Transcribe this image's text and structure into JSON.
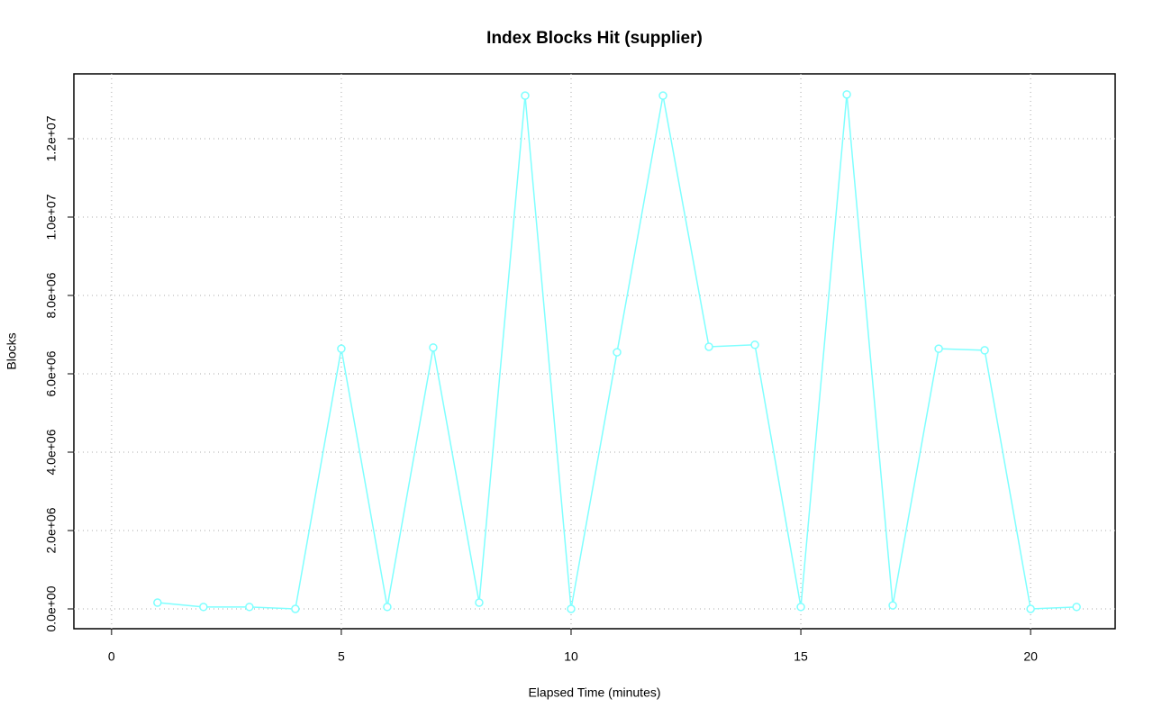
{
  "chart_data": {
    "type": "line",
    "title": "Index Blocks Hit (supplier)",
    "x_label": "Elapsed Time (minutes)",
    "y_label": "Blocks",
    "x": [
      1,
      2,
      3,
      4,
      5,
      6,
      7,
      8,
      9,
      10,
      11,
      12,
      13,
      14,
      15,
      16,
      17,
      18,
      19,
      20,
      21
    ],
    "values": [
      160000,
      50000,
      50000,
      0,
      6640000,
      50000,
      6670000,
      160000,
      13100000,
      0,
      6550000,
      13100000,
      6690000,
      6740000,
      50000,
      13130000,
      90000,
      6640000,
      6600000,
      0,
      50000
    ],
    "color": "#7fffff",
    "xlim": [
      -0.82,
      21.84
    ],
    "xticks": [
      0,
      5,
      10,
      15,
      20
    ],
    "ylim": [
      -506000,
      13655000
    ],
    "yticks": [
      {
        "value": 0,
        "label": "0.0e+00"
      },
      {
        "value": 2000000,
        "label": "2.0e+06"
      },
      {
        "value": 4000000,
        "label": "4.0e+06"
      },
      {
        "value": 6000000,
        "label": "6.0e+06"
      },
      {
        "value": 8000000,
        "label": "8.0e+06"
      },
      {
        "value": 10000000,
        "label": "1.0e+07"
      },
      {
        "value": 12000000,
        "label": "1.2e+07"
      }
    ],
    "grid": true
  }
}
